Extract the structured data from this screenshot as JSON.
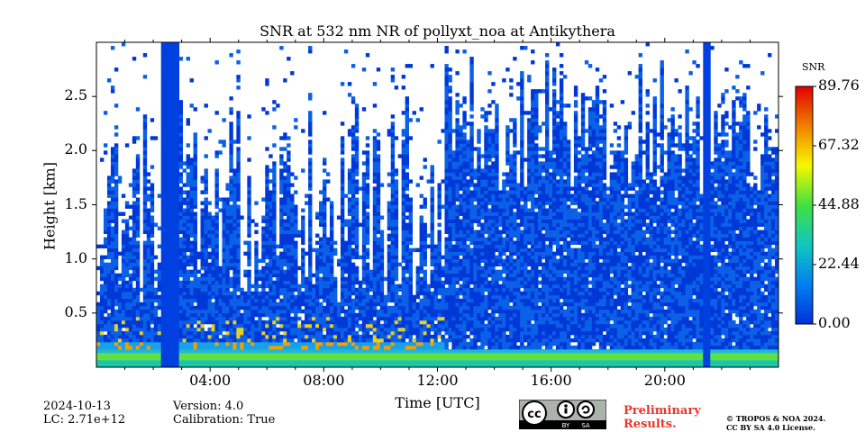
{
  "chart_data": {
    "type": "heatmap",
    "title": "SNR at 532 nm NR of pollyxt_noa at Antikythera",
    "xlabel": "Time [UTC]",
    "ylabel": "Height [km]",
    "xlim": [
      0,
      24
    ],
    "ylim": [
      0,
      3.0
    ],
    "x_ticks": [
      "04:00",
      "08:00",
      "12:00",
      "16:00",
      "20:00"
    ],
    "x_tick_values": [
      4,
      8,
      12,
      16,
      20
    ],
    "y_ticks": [
      "0.5",
      "1.0",
      "1.5",
      "2.0",
      "2.5"
    ],
    "y_tick_values": [
      0.5,
      1.0,
      1.5,
      2.0,
      2.5
    ],
    "colorbar": {
      "label": "SNR",
      "min": 0.0,
      "max": 89.76,
      "ticks": [
        "0.00",
        "22.44",
        "44.88",
        "67.32",
        "89.76"
      ],
      "tick_values": [
        0.0,
        22.44,
        44.88,
        67.32,
        89.76
      ],
      "colormap": [
        "#0030d8",
        "#0080f0",
        "#10c8c0",
        "#40e040",
        "#f8f800",
        "#f08000",
        "#e00000"
      ]
    },
    "features": {
      "near_surface_high_snr_top_km": 0.25,
      "aerosol_layer_top_km": 0.45,
      "signal_saturation_gaps_utc": [
        [
          2.3,
          2.85
        ],
        [
          21.3,
          21.6
        ]
      ],
      "low_noise_region_start_utc": 12.2
    }
  },
  "meta": {
    "date": "2024-10-13",
    "lc": "LC: 2.71e+12",
    "version": "Version: 4.0",
    "calibration": "Calibration: True"
  },
  "license": {
    "badge_cc": "cc",
    "badge_by": "BY",
    "badge_sa": "SA",
    "preliminary_line1": "Preliminary",
    "preliminary_line2": "Results.",
    "copyright_line1": "© TROPOS & NOA 2024.",
    "copyright_line2": "CC BY SA 4.0 License."
  }
}
